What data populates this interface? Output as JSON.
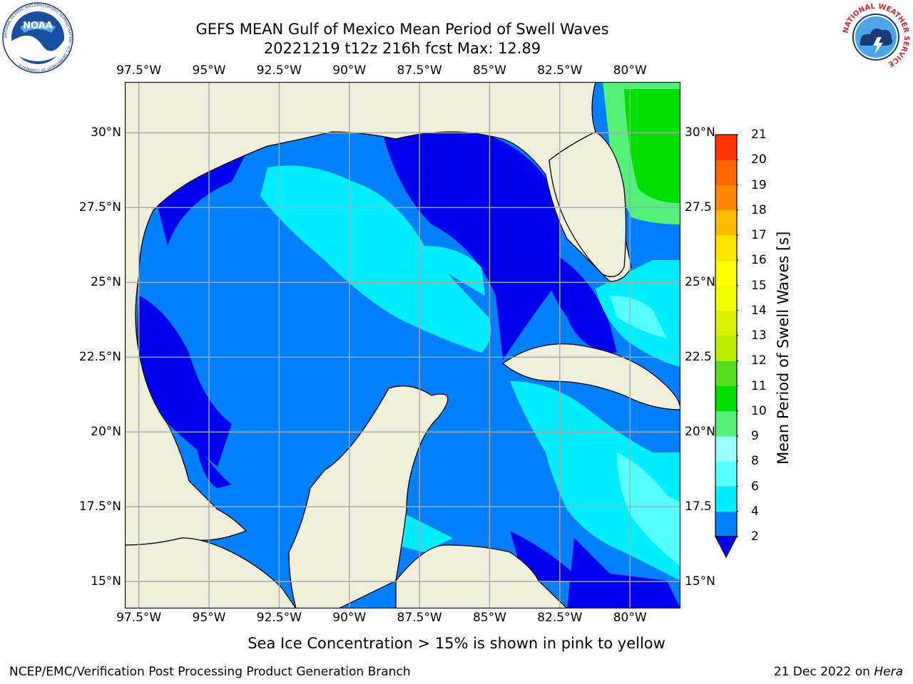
{
  "title": {
    "line1": "GEFS MEAN Gulf of Mexico Mean Period of Swell Waves",
    "line2": "20221219 t12z 216h fcst   Max: 12.89"
  },
  "logos": {
    "left": "NOAA",
    "left_ring_text": "NATIONAL OCEANIC AND ATMOSPHERIC ADMINISTRATION · U.S. DEPARTMENT OF COMMERCE",
    "right_ring_text": "NATIONAL WEATHER SERVICE"
  },
  "map": {
    "lon_ticks": [
      "97.5°W",
      "95°W",
      "92.5°W",
      "90°W",
      "87.5°W",
      "85°W",
      "82.5°W",
      "80°W"
    ],
    "lon_values": [
      -97.5,
      -95,
      -92.5,
      -90,
      -87.5,
      -85,
      -82.5,
      -80
    ],
    "lat_ticks_left": [
      "30°N",
      "27.5°N",
      "25°N",
      "22.5°N",
      "20°N",
      "17.5°N",
      "15°N"
    ],
    "lat_ticks_right": [
      "30°N",
      "27.5",
      "25°N",
      "22.5",
      "20°N",
      "17.5",
      "15°N"
    ],
    "lat_values": [
      30,
      27.5,
      25,
      22.5,
      20,
      17.5,
      15
    ],
    "lon_range": [
      -98,
      -78.2
    ],
    "lat_range": [
      14.1,
      31.7
    ],
    "ocean_background_color": "#0080ff",
    "land_color": "#efeedc"
  },
  "colorbar": {
    "title": "Mean Period of Swell Waves [s]",
    "levels": [
      "2",
      "4",
      "6",
      "8",
      "9",
      "10",
      "11",
      "12",
      "13",
      "14",
      "15",
      "16",
      "17",
      "18",
      "19",
      "20",
      "21"
    ],
    "colors": [
      "#0080ff",
      "#00eeff",
      "#55ffff",
      "#99ffff",
      "#55f07a",
      "#00dd00",
      "#55dd22",
      "#bbee00",
      "#d6f200",
      "#eeff00",
      "#ffff00",
      "#ffe600",
      "#ffbb00",
      "#ff8800",
      "#ff6600",
      "#ff3300",
      "#ff0000"
    ],
    "extend_min_color": "#0000ee"
  },
  "caption": "Sea Ice Concentration > 15% is shown in pink to yellow",
  "footer": {
    "left": "NCEP/EMC/Verification Post Processing Product Generation Branch",
    "date": "21 Dec 2022 on ",
    "host": "Hera"
  }
}
